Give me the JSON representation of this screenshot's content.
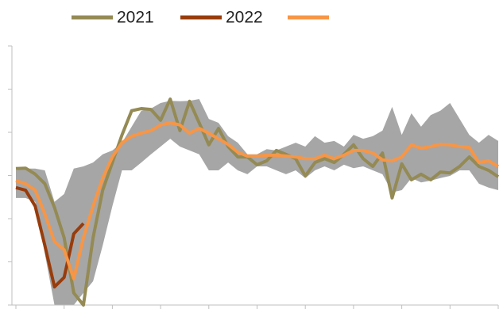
{
  "chart_data": {
    "type": "line",
    "x": [
      0,
      1,
      2,
      3,
      4,
      5,
      6,
      7,
      8,
      9,
      10,
      11,
      12,
      13,
      14,
      15,
      16,
      17,
      18,
      19,
      20,
      21,
      22,
      23,
      24,
      25,
      26,
      27,
      28,
      29,
      30,
      31,
      32,
      33,
      34,
      35,
      36,
      37,
      38,
      39,
      40,
      41,
      42,
      43,
      44,
      45,
      46,
      47,
      48,
      49,
      50
    ],
    "xlim": [
      0,
      50
    ],
    "xticks": [
      0,
      5,
      10,
      15,
      20,
      25,
      30,
      35,
      40,
      45,
      50
    ],
    "ylim": [
      0,
      6
    ],
    "yticks": [
      0,
      1,
      2,
      3,
      4,
      5,
      6
    ],
    "band": {
      "color": "#a6a6a6",
      "upper": [
        3.12,
        3.16,
        3.16,
        3.12,
        2.39,
        2.57,
        3.16,
        3.21,
        3.3,
        3.49,
        3.58,
        3.76,
        4.13,
        4.5,
        4.55,
        4.68,
        4.73,
        4.72,
        4.73,
        4.77,
        4.31,
        4.22,
        3.91,
        3.76,
        3.49,
        3.49,
        3.61,
        3.58,
        3.67,
        3.76,
        3.67,
        3.91,
        3.76,
        3.8,
        3.67,
        3.94,
        3.85,
        3.91,
        4.04,
        4.59,
        3.94,
        4.44,
        4.13,
        4.4,
        4.5,
        4.68,
        4.31,
        3.94,
        3.76,
        3.94,
        3.8
      ],
      "lower": [
        2.48,
        2.48,
        2.39,
        1.19,
        0,
        0,
        0,
        0.28,
        0.55,
        1.38,
        2.29,
        3.12,
        3.12,
        3.3,
        3.49,
        3.67,
        3.85,
        3.67,
        3.58,
        3.49,
        3.12,
        3.12,
        3.3,
        3.12,
        3.03,
        3.21,
        3.21,
        3.12,
        3.03,
        3.12,
        2.94,
        3.12,
        3.21,
        3.12,
        3.25,
        3.17,
        3.21,
        3.12,
        3.03,
        2.61,
        2.66,
        2.94,
        2.84,
        2.88,
        2.94,
        2.99,
        3.12,
        3.12,
        2.81,
        2.72,
        2.66
      ]
    },
    "series": [
      {
        "name": "2021",
        "color": "#948a54",
        "values": [
          3.16,
          3.17,
          3.03,
          2.81,
          2.26,
          1.56,
          0.28,
          0,
          1.56,
          2.66,
          3.3,
          3.94,
          4.5,
          4.55,
          4.53,
          4.28,
          4.77,
          4.04,
          4.72,
          4.22,
          3.71,
          4.09,
          3.67,
          3.43,
          3.43,
          3.25,
          3.34,
          3.58,
          3.49,
          3.39,
          2.99,
          3.3,
          3.39,
          3.3,
          3.49,
          3.71,
          3.39,
          3.21,
          3.52,
          2.48,
          3.27,
          2.9,
          3.03,
          2.9,
          3.08,
          3.06,
          3.21,
          3.43,
          3.21,
          3.12,
          2.97
        ]
      },
      {
        "name": "2022",
        "color": "#983c0c",
        "values": [
          2.72,
          2.66,
          2.29,
          1.38,
          0.42,
          0.64,
          1.65,
          1.89,
          null,
          null,
          null,
          null,
          null,
          null,
          null,
          null,
          null,
          null,
          null,
          null,
          null,
          null,
          null,
          null,
          null,
          null,
          null,
          null,
          null,
          null,
          null,
          null,
          null,
          null,
          null,
          null,
          null,
          null,
          null,
          null,
          null,
          null,
          null,
          null,
          null,
          null,
          null,
          null,
          null,
          null,
          null
        ]
      },
      {
        "color": "#f79646",
        "values": [
          2.88,
          2.81,
          2.66,
          2.11,
          1.47,
          1.28,
          0.61,
          1.56,
          2.29,
          2.94,
          3.43,
          3.76,
          3.91,
          3.98,
          4.04,
          4.17,
          4.22,
          4.17,
          3.98,
          4.09,
          3.98,
          3.85,
          3.72,
          3.54,
          3.45,
          3.45,
          3.47,
          3.47,
          3.45,
          3.43,
          3.39,
          3.39,
          3.47,
          3.39,
          3.47,
          3.58,
          3.58,
          3.52,
          3.36,
          3.34,
          3.43,
          3.71,
          3.63,
          3.67,
          3.72,
          3.71,
          3.67,
          3.65,
          3.3,
          3.34,
          3.21
        ]
      }
    ]
  }
}
